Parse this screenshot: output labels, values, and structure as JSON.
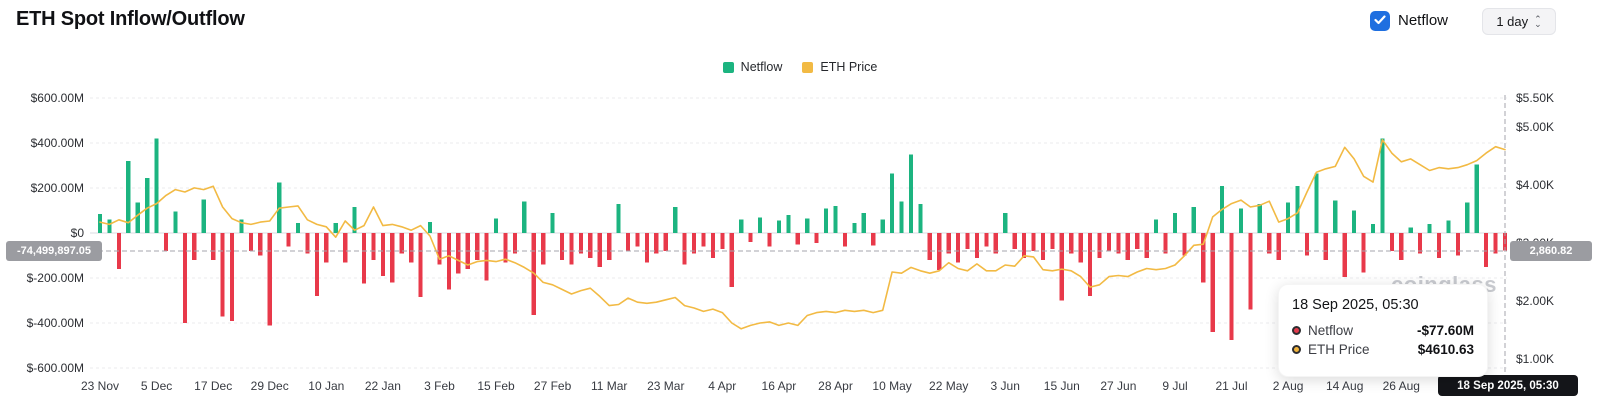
{
  "header": {
    "title": "ETH Spot Inflow/Outflow",
    "netflow_toggle_label": "Netflow",
    "interval_value": "1 day"
  },
  "legend": [
    {
      "label": "Netflow",
      "color": "#1cb480"
    },
    {
      "label": "ETH Price",
      "color": "#f2ba44"
    }
  ],
  "watermark": "coinglass",
  "axes": {
    "left_ticks": [
      {
        "label": "$600.00M",
        "value": 600
      },
      {
        "label": "$400.00M",
        "value": 400
      },
      {
        "label": "$200.00M",
        "value": 200
      },
      {
        "label": "$0",
        "value": 0
      },
      {
        "label": "$-200.00M",
        "value": -200
      },
      {
        "label": "$-400.00M",
        "value": -400
      },
      {
        "label": "$-600.00M",
        "value": -600
      }
    ],
    "right_ticks": [
      {
        "label": "$5.50K",
        "value": 5.5
      },
      {
        "label": "$5.00K",
        "value": 5.0
      },
      {
        "label": "$4.00K",
        "value": 4.0
      },
      {
        "label": "$3.00K",
        "value": 3.0
      },
      {
        "label": "$2.00K",
        "value": 2.0
      },
      {
        "label": "$1.00K",
        "value": 1.0
      }
    ],
    "crosshair": {
      "left_value": "-74,499,897.05",
      "right_value": "2,860.82",
      "x_value": "18 Sep 2025, 05:30"
    }
  },
  "tooltip": {
    "title": "18 Sep 2025, 05:30",
    "rows": [
      {
        "label": "Netflow",
        "value": "-$77.60M",
        "dot_color": "#e23b4d"
      },
      {
        "label": "ETH Price",
        "value": "$4610.63",
        "dot_color": "#f0b33c"
      }
    ]
  },
  "chart_data": {
    "type": "bar",
    "title": "ETH Spot Inflow/Outflow",
    "x_tick_labels": [
      "23 Nov",
      "5 Dec",
      "17 Dec",
      "29 Dec",
      "10 Jan",
      "22 Jan",
      "3 Feb",
      "15 Feb",
      "27 Feb",
      "11 Mar",
      "23 Mar",
      "4 Apr",
      "16 Apr",
      "28 Apr",
      "10 May",
      "22 May",
      "3 Jun",
      "15 Jun",
      "27 Jun",
      "9 Jul",
      "21 Jul",
      "2 Aug",
      "14 Aug",
      "26 Aug"
    ],
    "x_tick_indices": [
      0,
      6,
      12,
      18,
      24,
      30,
      36,
      42,
      48,
      54,
      60,
      66,
      72,
      78,
      84,
      90,
      96,
      102,
      108,
      114,
      120,
      126,
      132,
      138
    ],
    "left_axis": {
      "unit": "USD millions",
      "range": [
        -600,
        600
      ],
      "grid": "dashed"
    },
    "right_axis": {
      "unit": "USD thousands",
      "top": 5.5,
      "bottom": 0.845
    },
    "legend_position": "top-center",
    "series": [
      {
        "name": "Netflow",
        "type": "bar",
        "axis": "left",
        "unit": "$M",
        "color_positive": "#1cb480",
        "color_negative": "#e8394a",
        "values": [
          85,
          60,
          -160,
          320,
          135,
          245,
          420,
          -80,
          95,
          -400,
          -120,
          150,
          -120,
          -370,
          -390,
          60,
          -80,
          -100,
          -410,
          225,
          -60,
          45,
          -90,
          -280,
          -130,
          45,
          -130,
          115,
          -225,
          -120,
          -190,
          -220,
          -90,
          -130,
          -285,
          50,
          -140,
          -250,
          -180,
          -160,
          -120,
          -210,
          65,
          -130,
          -90,
          140,
          -365,
          -140,
          90,
          -120,
          -140,
          -90,
          -110,
          -150,
          -120,
          130,
          -80,
          -60,
          -130,
          -90,
          -80,
          115,
          -140,
          -90,
          -60,
          -110,
          -70,
          -240,
          60,
          -40,
          70,
          -60,
          55,
          80,
          -50,
          65,
          -45,
          110,
          120,
          -60,
          45,
          90,
          -55,
          60,
          265,
          140,
          350,
          130,
          -120,
          -165,
          -90,
          -130,
          -70,
          -110,
          -60,
          -90,
          90,
          -70,
          -110,
          -80,
          -120,
          -70,
          -300,
          -90,
          -130,
          -280,
          -110,
          -80,
          -90,
          -120,
          -70,
          -110,
          60,
          -90,
          90,
          -100,
          115,
          -220,
          -440,
          210,
          -476,
          110,
          -340,
          130,
          -90,
          -120,
          135,
          210,
          -100,
          265,
          -120,
          145,
          -195,
          100,
          -175,
          40,
          420,
          -80,
          -120,
          25,
          -90,
          40,
          -110,
          55,
          -100,
          135,
          305,
          -150,
          -90,
          -77.6
        ]
      },
      {
        "name": "ETH Price",
        "type": "line",
        "axis": "right",
        "unit": "$K",
        "color": "#f2ba44",
        "values": [
          3.36,
          3.32,
          3.4,
          3.35,
          3.48,
          3.6,
          3.68,
          3.82,
          3.92,
          3.88,
          3.95,
          3.92,
          3.98,
          3.62,
          3.42,
          3.35,
          3.32,
          3.36,
          3.38,
          3.6,
          3.62,
          3.64,
          3.4,
          3.32,
          3.28,
          3.1,
          3.38,
          3.22,
          3.3,
          3.62,
          3.3,
          3.32,
          3.28,
          3.22,
          3.3,
          3.12,
          2.72,
          2.78,
          2.7,
          2.62,
          2.68,
          2.7,
          2.68,
          2.72,
          2.66,
          2.58,
          2.48,
          2.32,
          2.28,
          2.2,
          2.12,
          2.18,
          2.22,
          2.08,
          1.92,
          1.94,
          2.05,
          1.98,
          1.96,
          1.98,
          2.02,
          2.06,
          1.92,
          1.88,
          1.82,
          1.86,
          1.8,
          1.62,
          1.52,
          1.58,
          1.62,
          1.64,
          1.58,
          1.62,
          1.58,
          1.75,
          1.8,
          1.82,
          1.8,
          1.84,
          1.82,
          1.84,
          1.8,
          1.84,
          2.5,
          2.48,
          2.58,
          2.52,
          2.48,
          2.52,
          2.66,
          2.56,
          2.52,
          2.64,
          2.52,
          2.52,
          2.62,
          2.6,
          2.78,
          2.76,
          2.54,
          2.52,
          2.55,
          2.52,
          2.42,
          2.24,
          2.28,
          2.42,
          2.44,
          2.42,
          2.5,
          2.56,
          2.54,
          2.56,
          2.62,
          2.78,
          2.96,
          2.98,
          3.45,
          3.58,
          3.68,
          3.74,
          3.62,
          3.65,
          3.72,
          3.36,
          3.42,
          3.52,
          3.88,
          4.22,
          4.28,
          4.32,
          4.65,
          4.45,
          4.15,
          4.05,
          4.78,
          4.55,
          4.4,
          4.45,
          4.35,
          4.25,
          4.3,
          4.28,
          4.3,
          4.35,
          4.42,
          4.55,
          4.66,
          4.61
        ]
      }
    ],
    "last_point": {
      "date": "18 Sep 2025, 05:30",
      "netflow": "-$77.60M",
      "eth_price": "$4610.63"
    }
  }
}
